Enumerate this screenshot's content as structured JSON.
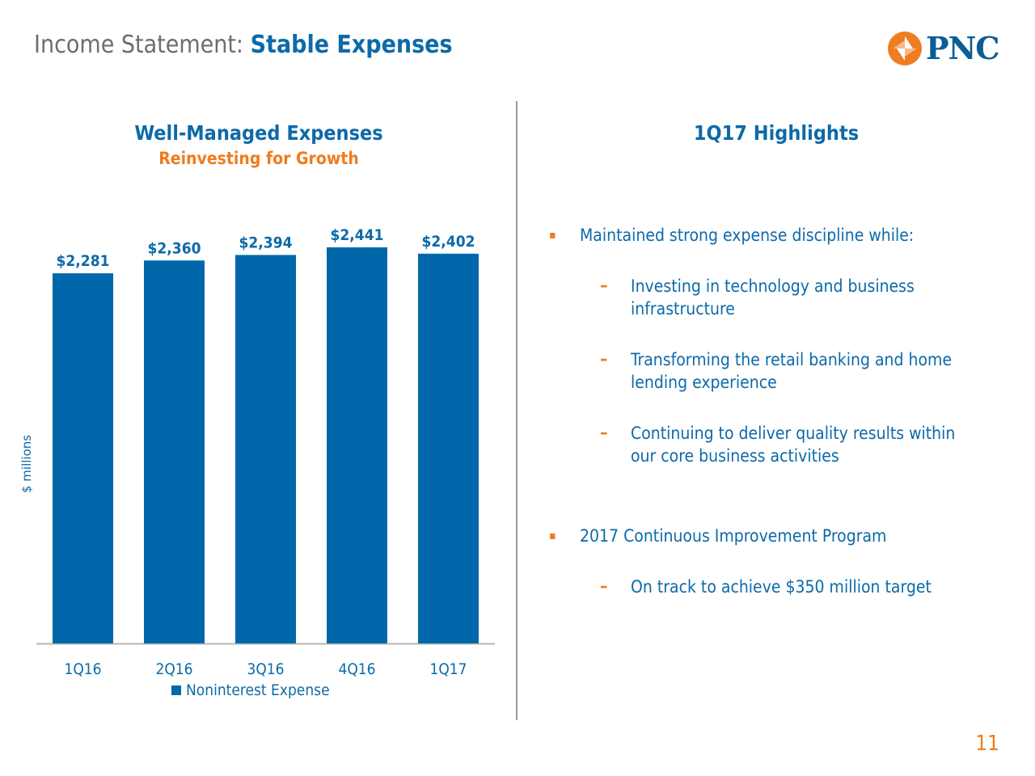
{
  "header": {
    "title_prefix": "Income Statement: ",
    "title_emphasis": "Stable Expenses",
    "logo_text": "PNC"
  },
  "left_panel": {
    "title": "Well-Managed Expenses",
    "subtitle": "Reinvesting for Growth"
  },
  "right_panel": {
    "title": "1Q17 Highlights",
    "items": [
      {
        "level": 1,
        "marker": "▪",
        "text": "Maintained strong expense discipline while:",
        "line2": ""
      },
      {
        "level": 2,
        "marker": "–",
        "text": "Investing in technology and business",
        "line2": "infrastructure"
      },
      {
        "level": 2,
        "marker": "–",
        "text": "Transforming the retail banking and home",
        "line2": "lending experience"
      },
      {
        "level": 2,
        "marker": "–",
        "text": "Continuing to deliver quality results within",
        "line2": "our core business activities"
      },
      {
        "level": 1,
        "marker": "▪",
        "text": "2017 Continuous Improvement Program",
        "line2": ""
      },
      {
        "level": 2,
        "marker": "–",
        "text": "On track to achieve $350 million target",
        "line2": ""
      }
    ]
  },
  "chart_data": {
    "type": "bar",
    "categories": [
      "1Q16",
      "2Q16",
      "3Q16",
      "4Q16",
      "1Q17"
    ],
    "series": [
      {
        "name": "Noninterest Expense",
        "values": [
          2281,
          2360,
          2394,
          2441,
          2402
        ]
      }
    ],
    "data_labels": [
      "$2,281",
      "$2,360",
      "$2,394",
      "$2,441",
      "$2,402"
    ],
    "ylabel": "$ millions",
    "ylim": [
      0,
      2600
    ],
    "grid": false,
    "legend_position": "bottom",
    "bar_color": "#0068aa"
  },
  "page_number": "11",
  "colors": {
    "accent_blue": "#0d6aa8",
    "accent_orange": "#f07c1e",
    "bar_blue": "#0068aa"
  }
}
